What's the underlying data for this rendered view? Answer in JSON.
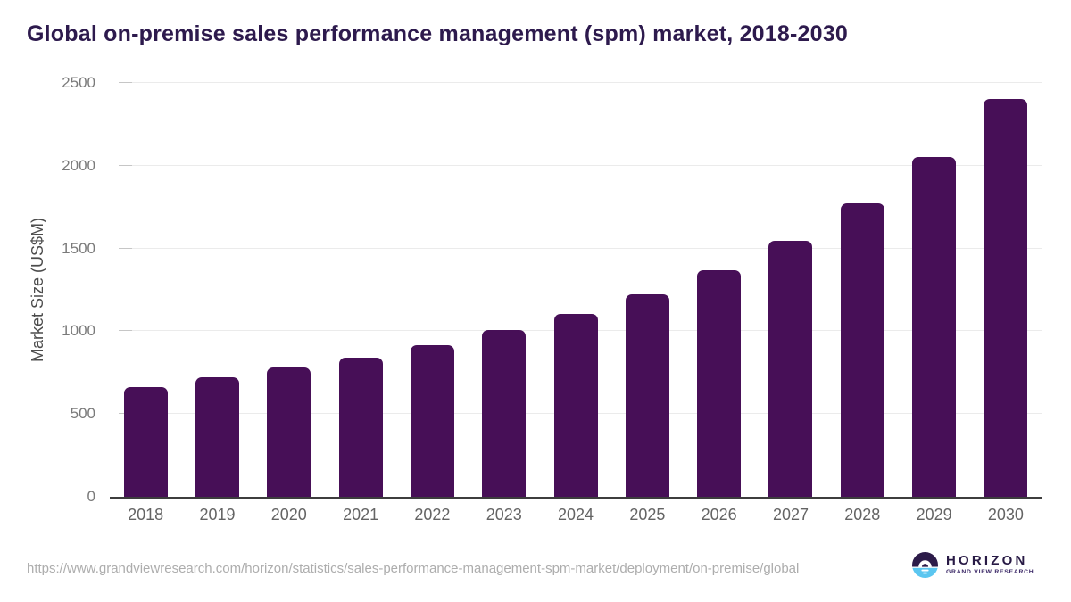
{
  "chart_data": {
    "type": "bar",
    "title": "Global on-premise sales performance management (spm) market, 2018-2030",
    "categories": [
      "2018",
      "2019",
      "2020",
      "2021",
      "2022",
      "2023",
      "2024",
      "2025",
      "2026",
      "2027",
      "2028",
      "2029",
      "2030"
    ],
    "values": [
      664,
      721,
      779,
      842,
      917,
      1005,
      1106,
      1225,
      1370,
      1546,
      1771,
      2052,
      2404
    ],
    "xlabel": "",
    "ylabel": "Market Size (US$M)",
    "ylim": [
      0,
      2500
    ],
    "yticks": [
      0,
      500,
      1000,
      1500,
      2000,
      2500
    ],
    "grid": true,
    "legend": false,
    "bar_color": "#470f57"
  },
  "footer": {
    "url": "https://www.grandviewresearch.com/horizon/statistics/sales-performance-management-spm-market/deployment/on-premise/global",
    "logo": {
      "brand": "HORIZON",
      "subbrand": "GRAND VIEW RESEARCH"
    }
  },
  "colors": {
    "title": "#2d1a4d",
    "bar": "#470f57",
    "axis_line": "#3d3d3d",
    "gridline": "#ebebeb",
    "tick_label": "#7a7a7a",
    "x_label": "#646464",
    "y_axis_title": "#4c4c4c",
    "url_text": "#adadad",
    "logo_purple": "#2c1b49",
    "logo_blue": "#5bc6f0"
  }
}
